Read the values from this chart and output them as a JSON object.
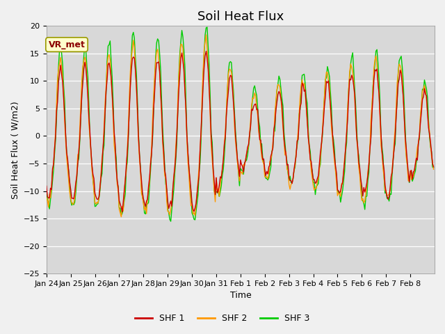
{
  "title": "Soil Heat Flux",
  "xlabel": "Time",
  "ylabel": "Soil Heat Flux ( W/m2)",
  "ylim": [
    -25,
    20
  ],
  "yticks": [
    -25,
    -20,
    -15,
    -10,
    -5,
    0,
    5,
    10,
    15,
    20
  ],
  "xtick_labels": [
    "Jan 24",
    "Jan 25",
    "Jan 26",
    "Jan 27",
    "Jan 28",
    "Jan 29",
    "Jan 30",
    "Jan 31",
    "Feb 1",
    "Feb 2",
    "Feb 3",
    "Feb 4",
    "Feb 5",
    "Feb 6",
    "Feb 7",
    "Feb 8"
  ],
  "colors": {
    "SHF1": "#cc0000",
    "SHF2": "#ff9900",
    "SHF3": "#00cc00"
  },
  "legend_labels": [
    "SHF 1",
    "SHF 2",
    "SHF 3"
  ],
  "annotation_text": "VR_met",
  "annotation_color": "#8b0000",
  "bg_color": "#f0f0f0",
  "plot_bg": "#d8d8d8",
  "title_fontsize": 13,
  "axis_fontsize": 9,
  "tick_fontsize": 8
}
